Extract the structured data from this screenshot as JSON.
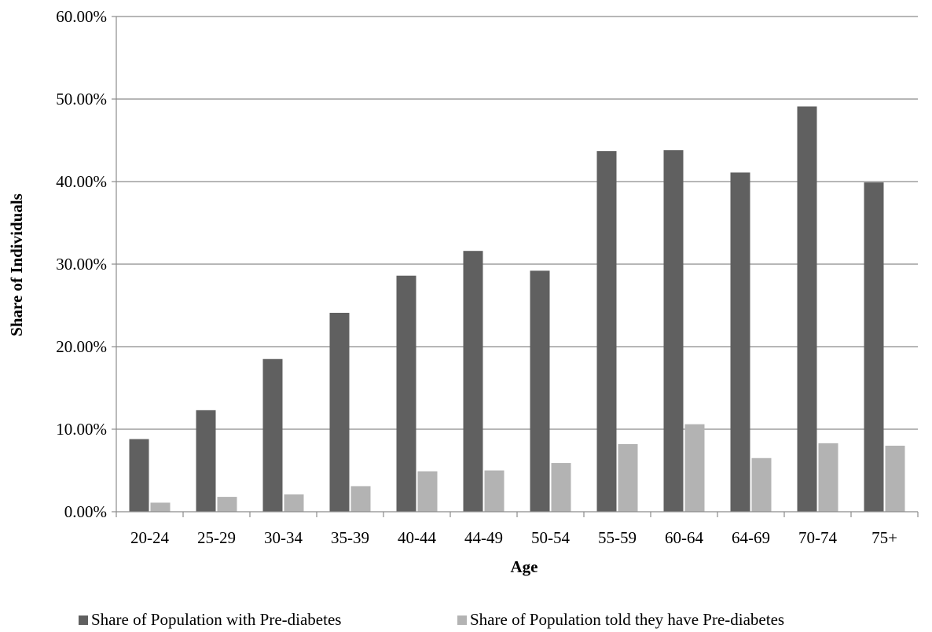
{
  "chart_data": {
    "type": "bar",
    "xlabel": "Age",
    "ylabel": "Share of Individuals",
    "ylim": [
      0,
      60
    ],
    "y_ticks": [
      0,
      10,
      20,
      30,
      40,
      50,
      60
    ],
    "y_tick_labels": [
      "0.00%",
      "10.00%",
      "20.00%",
      "30.00%",
      "40.00%",
      "50.00%",
      "60.00%"
    ],
    "grid": true,
    "legend_position": "bottom",
    "categories": [
      "20-24",
      "25-29",
      "30-34",
      "35-39",
      "40-44",
      "44-49",
      "50-54",
      "55-59",
      "60-64",
      "64-69",
      "70-74",
      "75+"
    ],
    "series": [
      {
        "name": "Share of Population with Pre-diabetes",
        "color": "#606060",
        "values": [
          8.8,
          12.3,
          18.5,
          24.1,
          28.6,
          31.6,
          29.2,
          43.7,
          43.8,
          41.1,
          49.1,
          39.9
        ]
      },
      {
        "name": "Share of Population told they have Pre-diabetes",
        "color": "#b3b3b3",
        "values": [
          1.1,
          1.8,
          2.1,
          3.1,
          4.9,
          5.0,
          5.9,
          8.2,
          10.6,
          6.5,
          8.3,
          8.0
        ]
      }
    ]
  }
}
